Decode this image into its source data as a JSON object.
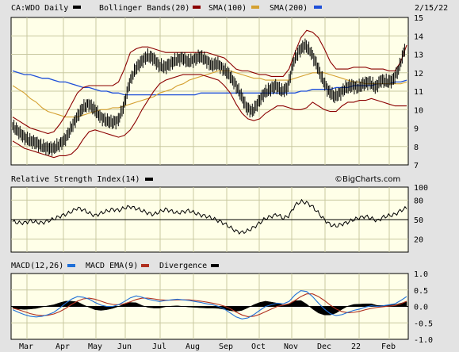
{
  "header": {
    "symbol_label": "CA:WDO Daily",
    "date": "2/15/22",
    "legend": [
      {
        "label": "Bollinger Bands(20)",
        "color": "#8b0000"
      },
      {
        "label": "SMA(100)",
        "color": "#d4a030"
      },
      {
        "label": "SMA(200)",
        "color": "#1e4fd8"
      }
    ]
  },
  "watermark": "©BigCharts.com",
  "colors": {
    "panel_bg": "#ffffe8",
    "grid": "#c8c8a0",
    "price": "#000000",
    "bollinger": "#8b0000",
    "sma100": "#d4a030",
    "sma200": "#1e4fd8",
    "macd": "#1e6fd8",
    "macd_ema": "#b03020",
    "divergence": "#000000"
  },
  "x_axis": {
    "labels": [
      "Mar",
      "Apr",
      "May",
      "Jun",
      "Jul",
      "Aug",
      "Sep",
      "Oct",
      "Nov",
      "Dec",
      "22",
      "Feb"
    ]
  },
  "chart_data": [
    {
      "type": "line",
      "name": "price",
      "ylim": [
        7,
        15
      ],
      "yticks": [
        7,
        8,
        9,
        10,
        11,
        12,
        13,
        14,
        15
      ],
      "grid": true,
      "price": [
        9.1,
        8.8,
        8.5,
        8.3,
        8.2,
        8.0,
        7.9,
        7.9,
        8.1,
        8.4,
        9.0,
        9.6,
        10.1,
        10.3,
        10.0,
        9.6,
        9.4,
        9.3,
        9.4,
        10.2,
        11.5,
        12.2,
        12.6,
        12.9,
        12.8,
        12.4,
        12.3,
        12.5,
        12.7,
        12.8,
        12.6,
        12.7,
        12.9,
        12.7,
        12.4,
        12.5,
        12.2,
        11.9,
        11.4,
        10.8,
        10.1,
        9.9,
        10.4,
        10.9,
        11.1,
        11.3,
        11.0,
        11.2,
        12.6,
        13.2,
        13.5,
        13.1,
        12.4,
        11.6,
        11.0,
        10.7,
        10.9,
        11.2,
        11.3,
        11.2,
        11.4,
        11.5,
        11.2,
        11.6,
        11.5,
        11.6,
        12.2,
        13.3
      ],
      "bb_upper": [
        9.6,
        9.4,
        9.2,
        9.0,
        8.9,
        8.8,
        8.7,
        8.8,
        9.2,
        9.7,
        10.3,
        10.9,
        11.2,
        11.3,
        11.3,
        11.3,
        11.3,
        11.3,
        11.5,
        12.2,
        13.1,
        13.3,
        13.4,
        13.4,
        13.3,
        13.2,
        13.1,
        13.1,
        13.1,
        13.1,
        13.1,
        13.1,
        13.1,
        13.1,
        13.0,
        12.9,
        12.8,
        12.5,
        12.2,
        12.1,
        12.1,
        12.0,
        11.9,
        11.9,
        11.8,
        11.8,
        11.8,
        12.2,
        13.1,
        13.9,
        14.3,
        14.2,
        13.9,
        13.3,
        12.6,
        12.2,
        12.2,
        12.2,
        12.3,
        12.3,
        12.3,
        12.2,
        12.2,
        12.2,
        12.1,
        12.1,
        12.6,
        13.5
      ],
      "bb_lower": [
        8.3,
        8.1,
        7.9,
        7.8,
        7.7,
        7.6,
        7.5,
        7.4,
        7.5,
        7.5,
        7.6,
        7.9,
        8.4,
        8.8,
        8.9,
        8.8,
        8.7,
        8.6,
        8.5,
        8.6,
        8.9,
        9.4,
        10.0,
        10.5,
        11.0,
        11.4,
        11.6,
        11.7,
        11.8,
        11.9,
        11.9,
        11.9,
        11.9,
        11.8,
        11.7,
        11.6,
        11.3,
        10.9,
        10.3,
        9.8,
        9.5,
        9.4,
        9.5,
        9.8,
        10.0,
        10.2,
        10.2,
        10.1,
        10.0,
        10.0,
        10.1,
        10.4,
        10.2,
        10.0,
        9.9,
        9.9,
        10.2,
        10.4,
        10.4,
        10.5,
        10.5,
        10.6,
        10.5,
        10.4,
        10.3,
        10.2,
        10.2,
        10.2
      ],
      "sma100": [
        11.3,
        11.1,
        10.9,
        10.6,
        10.4,
        10.1,
        9.9,
        9.8,
        9.7,
        9.6,
        9.6,
        9.6,
        9.7,
        9.8,
        9.9,
        10.0,
        10.0,
        10.1,
        10.1,
        10.2,
        10.3,
        10.4,
        10.5,
        10.6,
        10.7,
        10.9,
        11.0,
        11.1,
        11.3,
        11.4,
        11.6,
        11.7,
        11.8,
        11.9,
        12.0,
        12.1,
        12.1,
        12.1,
        12.0,
        11.9,
        11.8,
        11.7,
        11.7,
        11.6,
        11.6,
        11.6,
        11.6,
        11.6,
        11.7,
        11.8,
        11.9,
        12.0,
        12.0,
        12.0,
        11.9,
        11.8,
        11.7,
        11.6,
        11.5,
        11.5,
        11.4,
        11.4,
        11.4,
        11.4,
        11.4,
        11.4,
        11.4,
        11.5
      ],
      "sma200": [
        12.1,
        12.0,
        11.9,
        11.9,
        11.8,
        11.7,
        11.7,
        11.6,
        11.5,
        11.5,
        11.4,
        11.3,
        11.2,
        11.2,
        11.1,
        11.0,
        11.0,
        10.9,
        10.9,
        10.8,
        10.8,
        10.8,
        10.8,
        10.8,
        10.8,
        10.8,
        10.8,
        10.8,
        10.8,
        10.8,
        10.8,
        10.8,
        10.9,
        10.9,
        10.9,
        10.9,
        10.9,
        10.9,
        10.9,
        10.9,
        10.9,
        10.9,
        10.9,
        10.9,
        10.9,
        10.9,
        10.9,
        10.9,
        10.9,
        11.0,
        11.0,
        11.1,
        11.1,
        11.1,
        11.1,
        11.2,
        11.2,
        11.2,
        11.3,
        11.3,
        11.3,
        11.3,
        11.4,
        11.4,
        11.4,
        11.5,
        11.5,
        11.6
      ]
    },
    {
      "type": "line",
      "name": "rsi",
      "title": "Relative Strength Index(14)",
      "ylim": [
        0,
        100
      ],
      "yticks": [
        20,
        50,
        80,
        100
      ],
      "reference": 50,
      "values": [
        47,
        45,
        45,
        48,
        46,
        45,
        48,
        51,
        55,
        58,
        62,
        68,
        65,
        60,
        56,
        60,
        63,
        66,
        64,
        68,
        70,
        67,
        64,
        60,
        58,
        62,
        66,
        63,
        60,
        62,
        64,
        60,
        57,
        55,
        52,
        48,
        44,
        38,
        32,
        30,
        33,
        38,
        45,
        52,
        55,
        58,
        52,
        56,
        72,
        78,
        76,
        70,
        60,
        50,
        42,
        40,
        43,
        46,
        50,
        53,
        55,
        52,
        48,
        54,
        56,
        58,
        64,
        68
      ]
    },
    {
      "type": "line",
      "name": "macd",
      "title": "MACD(12,26)",
      "ylim": [
        -1.0,
        1.0
      ],
      "yticks": [
        -1.0,
        -0.5,
        0.0,
        0.5,
        1.0
      ],
      "series": [
        {
          "name": "MACD(12,26)",
          "values": [
            -0.1,
            -0.18,
            -0.25,
            -0.3,
            -0.32,
            -0.3,
            -0.25,
            -0.18,
            -0.05,
            0.1,
            0.22,
            0.3,
            0.28,
            0.22,
            0.12,
            0.04,
            0.0,
            0.0,
            0.05,
            0.15,
            0.26,
            0.32,
            0.28,
            0.22,
            0.18,
            0.15,
            0.18,
            0.2,
            0.22,
            0.2,
            0.18,
            0.15,
            0.12,
            0.08,
            0.05,
            0.0,
            -0.08,
            -0.2,
            -0.32,
            -0.38,
            -0.35,
            -0.25,
            -0.12,
            0.0,
            0.05,
            0.1,
            0.08,
            0.15,
            0.35,
            0.48,
            0.45,
            0.3,
            0.1,
            -0.08,
            -0.22,
            -0.28,
            -0.25,
            -0.18,
            -0.12,
            -0.08,
            -0.02,
            0.02,
            0.0,
            0.02,
            0.05,
            0.08,
            0.18,
            0.3
          ]
        },
        {
          "name": "MACD EMA(9)",
          "values": [
            -0.05,
            -0.1,
            -0.16,
            -0.22,
            -0.26,
            -0.28,
            -0.27,
            -0.23,
            -0.16,
            -0.06,
            0.06,
            0.16,
            0.23,
            0.25,
            0.22,
            0.16,
            0.1,
            0.06,
            0.05,
            0.08,
            0.14,
            0.21,
            0.25,
            0.25,
            0.23,
            0.2,
            0.19,
            0.19,
            0.2,
            0.2,
            0.2,
            0.18,
            0.16,
            0.13,
            0.1,
            0.06,
            0.01,
            -0.07,
            -0.17,
            -0.26,
            -0.31,
            -0.3,
            -0.24,
            -0.16,
            -0.08,
            0.0,
            0.04,
            0.08,
            0.18,
            0.3,
            0.38,
            0.38,
            0.3,
            0.18,
            0.04,
            -0.08,
            -0.16,
            -0.19,
            -0.18,
            -0.15,
            -0.1,
            -0.06,
            -0.03,
            -0.01,
            0.01,
            0.03,
            0.08,
            0.16
          ]
        },
        {
          "name": "Divergence",
          "values": [
            -0.05,
            -0.08,
            -0.09,
            -0.08,
            -0.06,
            -0.02,
            0.02,
            0.05,
            0.11,
            0.16,
            0.16,
            0.14,
            0.05,
            -0.03,
            -0.1,
            -0.12,
            -0.1,
            -0.06,
            0.0,
            0.07,
            0.12,
            0.11,
            0.03,
            -0.03,
            -0.05,
            -0.05,
            -0.01,
            0.01,
            0.02,
            0.0,
            -0.02,
            -0.03,
            -0.04,
            -0.05,
            -0.05,
            -0.06,
            -0.09,
            -0.13,
            -0.15,
            -0.12,
            -0.04,
            0.05,
            0.12,
            0.16,
            0.13,
            0.1,
            0.04,
            0.07,
            0.17,
            0.18,
            0.07,
            -0.08,
            -0.2,
            -0.26,
            -0.26,
            -0.2,
            -0.09,
            0.01,
            0.06,
            0.07,
            0.08,
            0.08,
            0.03,
            0.03,
            0.04,
            0.05,
            0.1,
            0.14
          ]
        }
      ]
    }
  ]
}
